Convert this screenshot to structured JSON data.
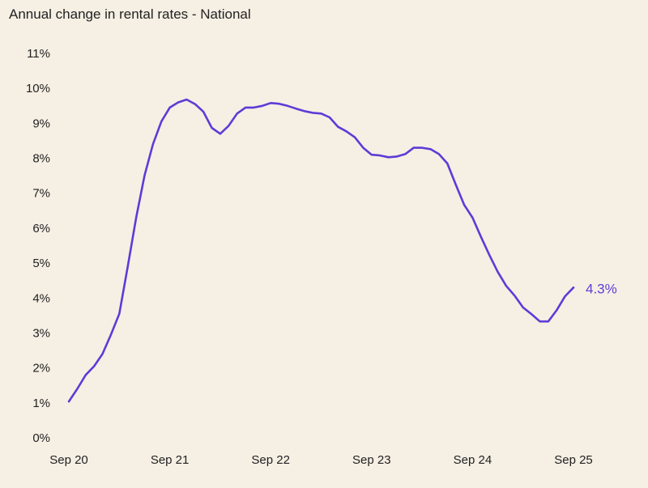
{
  "chart_data": {
    "type": "line",
    "title": "Annual change in rental rates - National",
    "xlabel": "",
    "ylabel": "",
    "ylim": [
      0,
      11
    ],
    "y_ticks": [
      "0%",
      "1%",
      "2%",
      "3%",
      "4%",
      "5%",
      "6%",
      "7%",
      "8%",
      "9%",
      "10%",
      "11%"
    ],
    "x_ticks": [
      "Sep 20",
      "Sep 21",
      "Sep 22",
      "Sep 23",
      "Sep 24",
      "Sep 25"
    ],
    "grid": false,
    "line_color": "#5a3dd6",
    "end_label": "4.3%",
    "series": [
      {
        "name": "National",
        "start": "Sep 20",
        "frequency": "monthly",
        "values": [
          1.04,
          1.4,
          1.8,
          2.05,
          2.4,
          2.95,
          3.55,
          4.9,
          6.3,
          7.5,
          8.4,
          9.05,
          9.45,
          9.6,
          9.68,
          9.55,
          9.33,
          8.87,
          8.7,
          8.93,
          9.28,
          9.45,
          9.45,
          9.5,
          9.58,
          9.56,
          9.5,
          9.42,
          9.35,
          9.3,
          9.28,
          9.17,
          8.9,
          8.77,
          8.6,
          8.3,
          8.1,
          8.08,
          8.03,
          8.05,
          8.12,
          8.3,
          8.3,
          8.26,
          8.12,
          7.85,
          7.25,
          6.67,
          6.3,
          5.75,
          5.23,
          4.75,
          4.35,
          4.07,
          3.73,
          3.54,
          3.33,
          3.33,
          3.65,
          4.05,
          4.3
        ]
      }
    ]
  }
}
